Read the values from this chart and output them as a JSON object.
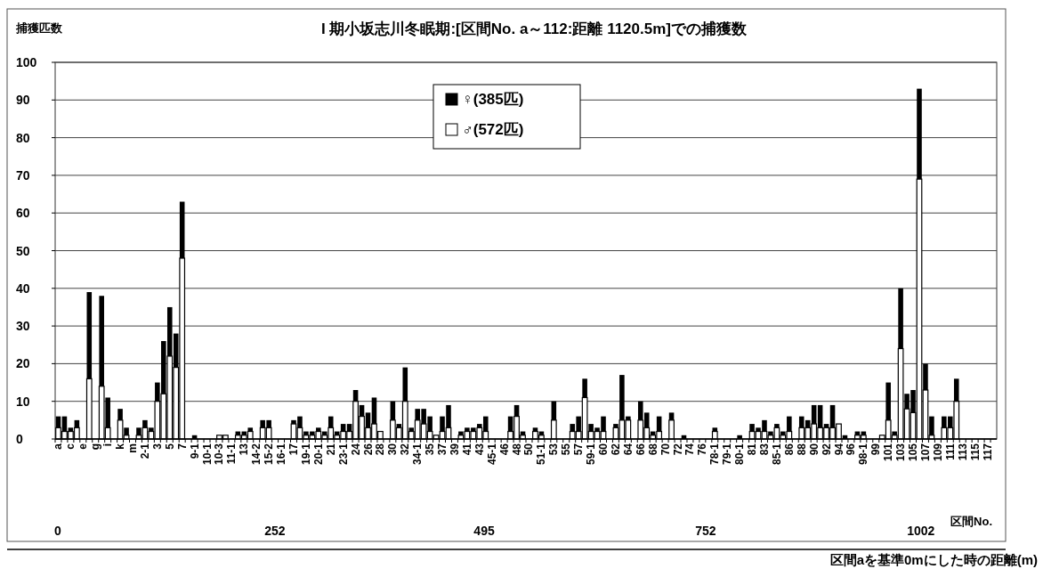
{
  "chart_data": {
    "type": "bar",
    "title": "I 期小坂志川冬眠期:[区間No. a～112:距離 1120.5m]での捕獲数",
    "ylabel": "捕獲匹数",
    "xlabel": "区間No.",
    "categories": [
      "a",
      null,
      "c",
      null,
      "e",
      null,
      "g",
      null,
      "i",
      null,
      "k",
      null,
      "m",
      null,
      "2-1",
      null,
      "3",
      null,
      "5",
      null,
      "7",
      null,
      "9-1",
      null,
      "10-1",
      null,
      "10-3",
      null,
      "11-1",
      null,
      "13",
      null,
      "14-2",
      null,
      "15-2",
      null,
      "16-1",
      null,
      "17",
      null,
      "19-1",
      null,
      "20-1",
      null,
      "21",
      null,
      "23-1",
      null,
      "24",
      null,
      "26",
      null,
      "28",
      null,
      "30",
      null,
      "32",
      null,
      "34-1",
      null,
      "35",
      null,
      "37",
      null,
      "39",
      null,
      "41",
      null,
      "43",
      null,
      "45-1",
      null,
      "46",
      null,
      "48",
      null,
      "50",
      null,
      "51-1",
      null,
      "53",
      null,
      "55",
      null,
      "57",
      null,
      "59-1",
      null,
      "60",
      null,
      "62",
      null,
      "64",
      null,
      "66",
      null,
      "68",
      null,
      "70",
      null,
      "72",
      null,
      "74",
      null,
      "76",
      null,
      "78-1",
      null,
      "79-1",
      null,
      "80-1",
      null,
      "81",
      null,
      "83",
      null,
      "85-1",
      null,
      "86",
      null,
      "88",
      null,
      "90",
      null,
      "92",
      null,
      "94",
      null,
      "96",
      null,
      "98-1",
      null,
      "99",
      null,
      "101",
      null,
      "103",
      null,
      "105",
      null,
      "107",
      null,
      "109",
      null,
      "111",
      null,
      "113",
      null,
      "115",
      null,
      "117",
      null
    ],
    "series": [
      {
        "name": "♂(572匹)",
        "color": "#ffffff",
        "values": [
          3,
          2,
          2,
          3,
          0,
          16,
          0,
          14,
          3,
          0,
          5,
          1,
          0,
          1,
          3,
          2,
          10,
          12,
          22,
          19,
          48,
          0,
          0,
          0,
          0,
          0,
          1,
          1,
          0,
          1,
          1,
          2,
          0,
          3,
          3,
          0,
          0,
          0,
          4,
          3,
          1,
          1,
          2,
          1,
          3,
          1,
          2,
          2,
          10,
          6,
          3,
          4,
          2,
          0,
          5,
          3,
          10,
          2,
          5,
          4,
          2,
          1,
          2,
          3,
          0,
          1,
          2,
          2,
          3,
          2,
          0,
          0,
          0,
          2,
          6,
          1,
          0,
          2,
          1,
          0,
          5,
          0,
          0,
          2,
          2,
          11,
          2,
          2,
          2,
          0,
          3,
          5,
          5,
          0,
          5,
          3,
          1,
          2,
          0,
          5,
          0,
          0,
          0,
          0,
          0,
          0,
          2,
          0,
          0,
          0,
          0,
          0,
          2,
          2,
          2,
          1,
          3,
          1,
          2,
          0,
          3,
          3,
          4,
          3,
          3,
          3,
          4,
          0,
          0,
          1,
          1,
          0,
          0,
          1,
          5,
          1,
          24,
          8,
          7,
          69,
          13,
          1,
          0,
          3,
          3,
          10,
          0,
          0,
          0,
          0,
          0,
          0
        ]
      },
      {
        "name": "♀(385匹)",
        "color": "#000000",
        "values": [
          3,
          4,
          1,
          2,
          0,
          23,
          0,
          24,
          8,
          0,
          3,
          2,
          0,
          2,
          2,
          1,
          5,
          14,
          13,
          9,
          15,
          0,
          1,
          0,
          0,
          0,
          0,
          0,
          0,
          1,
          1,
          1,
          0,
          2,
          2,
          0,
          0,
          0,
          1,
          3,
          1,
          1,
          1,
          1,
          3,
          1,
          2,
          2,
          3,
          3,
          4,
          7,
          0,
          0,
          5,
          1,
          9,
          1,
          3,
          4,
          4,
          0,
          4,
          6,
          0,
          1,
          1,
          1,
          1,
          4,
          0,
          0,
          0,
          4,
          3,
          1,
          0,
          1,
          1,
          0,
          5,
          0,
          0,
          2,
          4,
          5,
          2,
          1,
          4,
          0,
          1,
          12,
          1,
          0,
          5,
          4,
          1,
          4,
          0,
          2,
          0,
          1,
          0,
          0,
          0,
          0,
          1,
          0,
          0,
          0,
          1,
          0,
          2,
          1,
          3,
          1,
          1,
          1,
          4,
          0,
          3,
          2,
          5,
          6,
          1,
          6,
          0,
          1,
          0,
          1,
          1,
          0,
          0,
          0,
          10,
          1,
          16,
          4,
          6,
          24,
          7,
          5,
          0,
          3,
          3,
          6,
          0,
          0,
          0,
          0,
          0,
          0
        ]
      }
    ],
    "stacked": true,
    "ylim": [
      0,
      100
    ],
    "yticks": [
      0,
      10,
      20,
      30,
      40,
      50,
      60,
      70,
      80,
      90,
      100
    ],
    "grid": "y",
    "legend": "top",
    "x2lim": [
      -3,
      1090
    ],
    "x2ticks": [
      0,
      252,
      495,
      752,
      1002
    ],
    "x2label": "区間aを基準0mにした時の距離(m)"
  }
}
